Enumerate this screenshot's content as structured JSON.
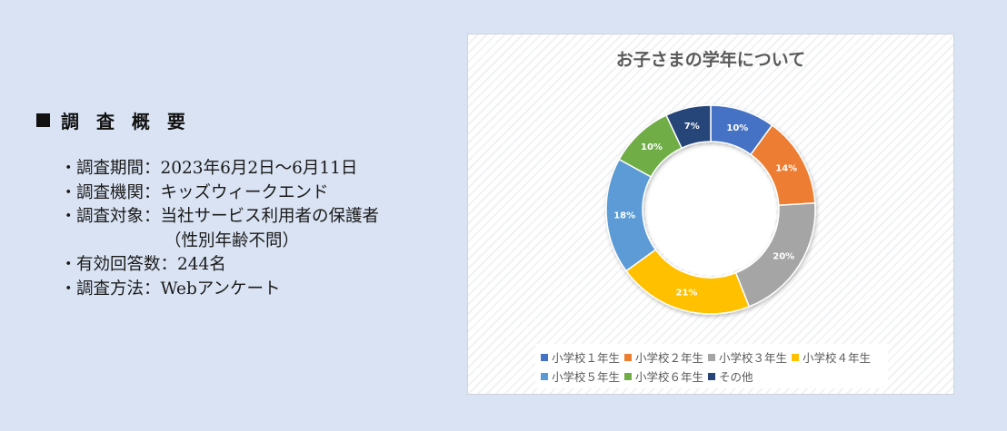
{
  "summary": {
    "heading": "調 査 概 要",
    "items": [
      {
        "bullet": "・",
        "text": "調査期間：2023年6月2日〜6月11日"
      },
      {
        "bullet": "・",
        "text": "調査機関：キッズウィークエンド"
      },
      {
        "bullet": "・",
        "text": "調査対象：当社サービス利用者の保護者"
      },
      {
        "bullet": "",
        "text": "（性別年齢不問）"
      },
      {
        "bullet": "・",
        "text": "有効回答数：244名"
      },
      {
        "bullet": "・",
        "text": "調査方法：Webアンケート"
      }
    ]
  },
  "chart_data": {
    "type": "pie",
    "title": "お子さまの学年について",
    "style": "donut",
    "legend_position": "bottom",
    "slices": [
      {
        "label": "小学校１年生",
        "value": 10,
        "display": "10%",
        "color": "#4472c4"
      },
      {
        "label": "小学校２年生",
        "value": 14,
        "display": "14%",
        "color": "#ed7d31"
      },
      {
        "label": "小学校３年生",
        "value": 20,
        "display": "20%",
        "color": "#a5a5a5"
      },
      {
        "label": "小学校４年生",
        "value": 21,
        "display": "21%",
        "color": "#ffc000"
      },
      {
        "label": "小学校５年生",
        "value": 18,
        "display": "18%",
        "color": "#5b9bd5"
      },
      {
        "label": "小学校６年生",
        "value": 10,
        "display": "10%",
        "color": "#70ad47"
      },
      {
        "label": "その他",
        "value": 7,
        "display": "7%",
        "color": "#264478"
      }
    ]
  }
}
